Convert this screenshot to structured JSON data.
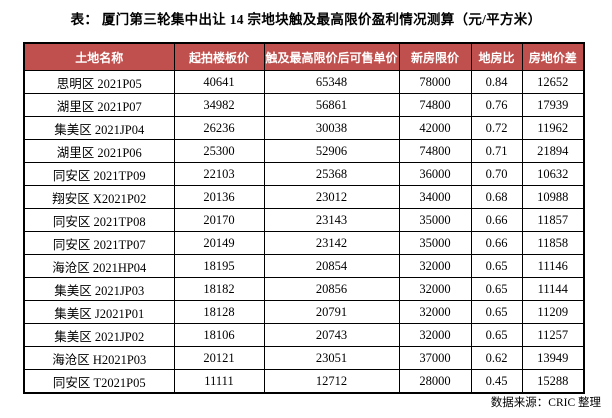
{
  "page": {
    "title": "表：  厦门第三轮集中出让 14 宗地块触及最高限价盈利情况测算（元/平方米）",
    "source_note": "数据来源：CRIC 整理"
  },
  "colors": {
    "header_bg": "#C0504D",
    "header_text": "#FFFFFF",
    "border": "#000000",
    "cell_bg": "#FFFFFF",
    "body_text": "#000000"
  },
  "table": {
    "columns": [
      "土地名称",
      "起拍楼板价",
      "触及最高限价后可售单价",
      "新房限价",
      "地房比",
      "房地价差"
    ],
    "rows": [
      [
        "思明区 2021P05",
        "40641",
        "65348",
        "78000",
        "0.84",
        "12652"
      ],
      [
        "湖里区 2021P07",
        "34982",
        "56861",
        "74800",
        "0.76",
        "17939"
      ],
      [
        "集美区 2021JP04",
        "26236",
        "30038",
        "42000",
        "0.72",
        "11962"
      ],
      [
        "湖里区 2021P06",
        "25300",
        "52906",
        "74800",
        "0.71",
        "21894"
      ],
      [
        "同安区 2021TP09",
        "22103",
        "25368",
        "36000",
        "0.70",
        "10632"
      ],
      [
        "翔安区 X2021P02",
        "20136",
        "23012",
        "34000",
        "0.68",
        "10988"
      ],
      [
        "同安区 2021TP08",
        "20170",
        "23143",
        "35000",
        "0.66",
        "11857"
      ],
      [
        "同安区 2021TP07",
        "20149",
        "23142",
        "35000",
        "0.66",
        "11858"
      ],
      [
        "海沧区 2021HP04",
        "18195",
        "20854",
        "32000",
        "0.65",
        "11146"
      ],
      [
        "集美区 2021JP03",
        "18182",
        "20856",
        "32000",
        "0.65",
        "11144"
      ],
      [
        "集美区 J2021P01",
        "18128",
        "20791",
        "32000",
        "0.65",
        "11209"
      ],
      [
        "集美区 2021JP02",
        "18106",
        "20743",
        "32000",
        "0.65",
        "11257"
      ],
      [
        "海沧区 H2021P03",
        "20121",
        "23051",
        "37000",
        "0.62",
        "13949"
      ],
      [
        "同安区 T2021P05",
        "11111",
        "12712",
        "28000",
        "0.45",
        "15288"
      ]
    ]
  }
}
